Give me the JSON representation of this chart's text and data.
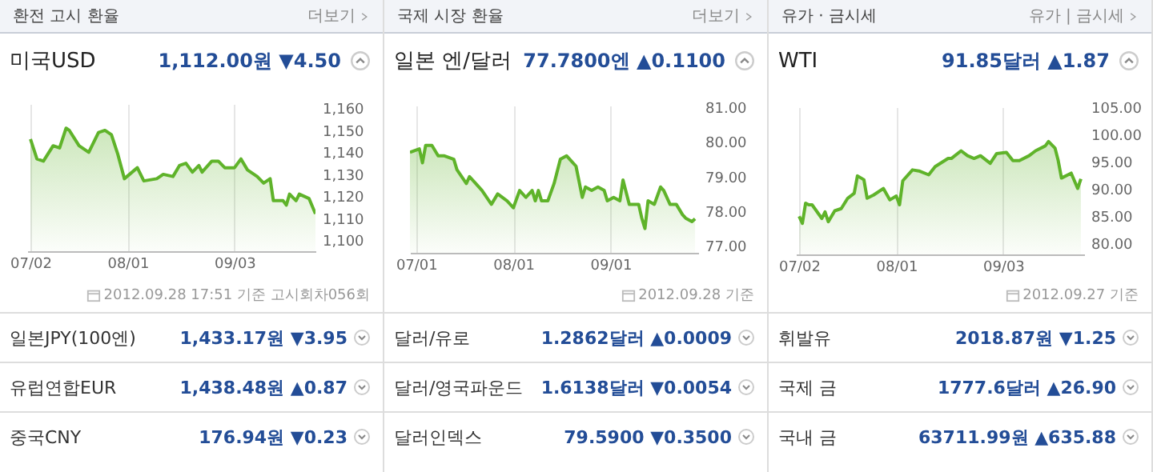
{
  "chart_data": [
    {
      "type": "area",
      "title": "미국USD",
      "subtitle": "1,112.00원 ▼4.50",
      "annotations": [
        "환전 고시 환율",
        "더보기",
        "2012.09.28 17:51 기준 고시회차056회",
        "일본JPY(100엔)",
        "1,433.17원 ▼3.95",
        "유럽연합EUR",
        "1,438.48원 ▲0.87",
        "중국CNY",
        "176.94원 ▼0.23"
      ],
      "x": [
        "2012-07-02",
        "2012-07-04",
        "2012-07-06",
        "2012-07-09",
        "2012-07-11",
        "2012-07-13",
        "2012-07-14",
        "2012-07-17",
        "2012-07-20",
        "2012-07-23",
        "2012-07-25",
        "2012-07-27",
        "2012-07-29",
        "2012-07-31",
        "2012-08-04",
        "2012-08-06",
        "2012-08-10",
        "2012-08-12",
        "2012-08-15",
        "2012-08-17",
        "2012-08-19",
        "2012-08-21",
        "2012-08-23",
        "2012-08-24",
        "2012-08-27",
        "2012-08-29",
        "2012-08-31",
        "2012-09-03",
        "2012-09-05",
        "2012-09-07",
        "2012-09-10",
        "2012-09-12",
        "2012-09-14",
        "2012-09-15",
        "2012-09-18",
        "2012-09-19",
        "2012-09-20",
        "2012-09-22",
        "2012-09-23",
        "2012-09-26",
        "2012-09-28"
      ],
      "series": [
        {
          "color": "#5fb32a",
          "values": [
            1146,
            1137,
            1136,
            1143,
            1142,
            1151,
            1150,
            1143,
            1140,
            1149,
            1150,
            1148,
            1139,
            1128,
            1133,
            1127,
            1128,
            1130,
            1129,
            1134,
            1135,
            1131,
            1134,
            1131,
            1136,
            1136,
            1133,
            1133,
            1137,
            1132,
            1129,
            1126,
            1128,
            1118,
            1118,
            1116,
            1121,
            1118,
            1121,
            1119,
            1112
          ]
        }
      ],
      "xlim": [
        "2012-07-01",
        "2012-09-28"
      ],
      "xticks": [
        {
          "value": "2012-07-02",
          "label": "07/02"
        },
        {
          "value": "2012-08-01",
          "label": "08/01"
        },
        {
          "value": "2012-09-03",
          "label": "09/03"
        }
      ],
      "ylim": [
        1095,
        1162
      ],
      "yticks": [
        {
          "value": 1100,
          "label": "1,100"
        },
        {
          "value": 1110,
          "label": "1,110"
        },
        {
          "value": 1120,
          "label": "1,120"
        },
        {
          "value": 1130,
          "label": "1,130"
        },
        {
          "value": 1140,
          "label": "1,140"
        },
        {
          "value": 1150,
          "label": "1,150"
        },
        {
          "value": 1160,
          "label": "1,160"
        }
      ],
      "grid": "x"
    },
    {
      "type": "area",
      "title": "일본 엔/달러",
      "subtitle": "77.7800엔 ▲0.1100",
      "annotations": [
        "국제 시장 환율",
        "더보기",
        "2012.09.28 기준",
        "달러/유로",
        "1.2862달러 ▲0.0009",
        "달러/영국파운드",
        "1.6138달러 ▼0.0054",
        "달러인덱스",
        "79.5900 ▼0.3500"
      ],
      "x": [
        "2012-06-29",
        "2012-07-02",
        "2012-07-03",
        "2012-07-04",
        "2012-07-06",
        "2012-07-08",
        "2012-07-10",
        "2012-07-13",
        "2012-07-14",
        "2012-07-17",
        "2012-07-18",
        "2012-07-20",
        "2012-07-22",
        "2012-07-25",
        "2012-07-27",
        "2012-07-30",
        "2012-08-01",
        "2012-08-03",
        "2012-08-05",
        "2012-08-07",
        "2012-08-08",
        "2012-08-09",
        "2012-08-10",
        "2012-08-12",
        "2012-08-14",
        "2012-08-16",
        "2012-08-18",
        "2012-08-19",
        "2012-08-21",
        "2012-08-23",
        "2012-08-24",
        "2012-08-26",
        "2012-08-28",
        "2012-08-30",
        "2012-08-31",
        "2012-09-02",
        "2012-09-04",
        "2012-09-05",
        "2012-09-07",
        "2012-09-10",
        "2012-09-11",
        "2012-09-12",
        "2012-09-13",
        "2012-09-15",
        "2012-09-17",
        "2012-09-18",
        "2012-09-20",
        "2012-09-22",
        "2012-09-24",
        "2012-09-25",
        "2012-09-27",
        "2012-09-28"
      ],
      "series": [
        {
          "color": "#5fb32a",
          "values": [
            79.7,
            79.8,
            79.4,
            79.9,
            79.9,
            79.6,
            79.6,
            79.5,
            79.2,
            78.8,
            79.0,
            78.8,
            78.6,
            78.2,
            78.5,
            78.3,
            78.1,
            78.6,
            78.4,
            78.6,
            78.3,
            78.6,
            78.3,
            78.3,
            78.8,
            79.5,
            79.6,
            79.5,
            79.3,
            78.4,
            78.7,
            78.6,
            78.7,
            78.6,
            78.3,
            78.4,
            78.3,
            78.9,
            78.2,
            78.2,
            77.8,
            77.5,
            78.3,
            78.2,
            78.7,
            78.6,
            78.2,
            78.2,
            77.9,
            77.8,
            77.7,
            77.78
          ]
        }
      ],
      "xlim": [
        "2012-06-29",
        "2012-09-29"
      ],
      "xticks": [
        {
          "value": "2012-07-01",
          "label": "07/01"
        },
        {
          "value": "2012-08-01",
          "label": "08/01"
        },
        {
          "value": "2012-09-01",
          "label": "09/01"
        }
      ],
      "ylim": [
        76.8,
        81.05
      ],
      "yticks": [
        {
          "value": 77,
          "label": "77.00"
        },
        {
          "value": 78,
          "label": "78.00"
        },
        {
          "value": 79,
          "label": "79.00"
        },
        {
          "value": 80,
          "label": "80.00"
        },
        {
          "value": 81,
          "label": "81.00"
        }
      ],
      "grid": "x"
    },
    {
      "type": "area",
      "title": "WTI",
      "subtitle": "91.85달러 ▲1.87",
      "annotations": [
        "유가 · 금시세",
        "유가 | 금시세",
        "2012.09.27 기준",
        "휘발유",
        "2018.87원 ▼1.25",
        "국제 금",
        "1777.6달러 ▲26.90",
        "국내 금",
        "63711.99원 ▲635.88"
      ],
      "x": [
        "2012-07-02",
        "2012-07-03",
        "2012-07-04",
        "2012-07-05",
        "2012-07-06",
        "2012-07-09",
        "2012-07-10",
        "2012-07-11",
        "2012-07-13",
        "2012-07-15",
        "2012-07-17",
        "2012-07-19",
        "2012-07-20",
        "2012-07-22",
        "2012-07-23",
        "2012-07-25",
        "2012-07-28",
        "2012-07-30",
        "2012-08-01",
        "2012-08-02",
        "2012-08-03",
        "2012-08-06",
        "2012-08-08",
        "2012-08-11",
        "2012-08-13",
        "2012-08-17",
        "2012-08-18",
        "2012-08-21",
        "2012-08-23",
        "2012-08-25",
        "2012-08-27",
        "2012-08-30",
        "2012-09-01",
        "2012-09-04",
        "2012-09-06",
        "2012-09-08",
        "2012-09-11",
        "2012-09-13",
        "2012-09-16",
        "2012-09-17",
        "2012-09-19",
        "2012-09-20",
        "2012-09-21",
        "2012-09-24",
        "2012-09-25",
        "2012-09-26",
        "2012-09-27"
      ],
      "series": [
        {
          "color": "#5fb32a",
          "values": [
            85.0,
            83.7,
            87.4,
            87.1,
            87.1,
            84.6,
            85.8,
            84.0,
            86.0,
            86.4,
            88.3,
            89.2,
            92.4,
            91.7,
            88.3,
            88.9,
            90.1,
            88.0,
            88.7,
            87.1,
            91.5,
            93.5,
            93.3,
            92.6,
            94.1,
            95.6,
            95.6,
            97.0,
            96.1,
            95.6,
            96.1,
            94.7,
            96.5,
            96.7,
            95.2,
            95.2,
            96.1,
            97.0,
            97.9,
            98.7,
            97.5,
            95.2,
            92.0,
            92.9,
            91.5,
            90.1,
            91.85
          ]
        }
      ],
      "xlim": [
        "2012-07-01",
        "2012-09-28"
      ],
      "xticks": [
        {
          "value": "2012-07-02",
          "label": "07/02"
        },
        {
          "value": "2012-08-01",
          "label": "08/01"
        },
        {
          "value": "2012-09-03",
          "label": "09/03"
        }
      ],
      "ylim": [
        78,
        105
      ],
      "yticks": [
        {
          "value": 80,
          "label": "80.00"
        },
        {
          "value": 85,
          "label": "85.00"
        },
        {
          "value": 90,
          "label": "90.00"
        },
        {
          "value": 95,
          "label": "95.00"
        },
        {
          "value": 100,
          "label": "100.00"
        },
        {
          "value": 105,
          "label": "105.00"
        }
      ],
      "grid": "x"
    }
  ]
}
